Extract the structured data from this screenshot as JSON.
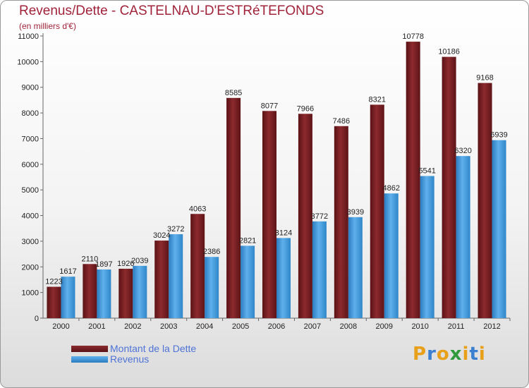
{
  "chart_data": {
    "type": "bar",
    "title": "Revenus/Dette - CASTELNAU-D'ESTRéTEFONDS",
    "subtitle": "(en milliers d'€)",
    "categories": [
      "2000",
      "2001",
      "2002",
      "2003",
      "2004",
      "2005",
      "2006",
      "2007",
      "2008",
      "2009",
      "2010",
      "2011",
      "2012"
    ],
    "series": [
      {
        "name": "Montant de la Dette",
        "color": "#7a1c20",
        "values": [
          1223,
          2110,
          1926,
          3024,
          4063,
          8585,
          8077,
          7966,
          7486,
          8321,
          10778,
          10186,
          9168
        ]
      },
      {
        "name": "Revenus",
        "color": "#3f97d8",
        "values": [
          1617,
          1897,
          2039,
          3272,
          2386,
          2821,
          3124,
          3772,
          3939,
          4862,
          5541,
          6320,
          6939
        ]
      }
    ],
    "data_labels": [
      [
        "1223",
        "2110",
        "1926",
        "3024",
        "4063",
        "8585",
        "8077",
        "7966",
        "7486",
        "8321",
        "10778",
        "10186",
        "9168"
      ],
      [
        "1617",
        "1897",
        "2039",
        "3272",
        "2386",
        "2821",
        "3124",
        "3772",
        "3939",
        "4862",
        "5541",
        "6320",
        "6939"
      ]
    ],
    "ylim": [
      0,
      11000
    ],
    "yticks": [
      "0",
      "1000",
      "2000",
      "3000",
      "4000",
      "5000",
      "6000",
      "7000",
      "8000",
      "9000",
      "10000",
      "11000"
    ],
    "grid": false,
    "legend_position": "bottom-left"
  },
  "logo": {
    "letters": [
      "P",
      "r",
      "o",
      "x",
      "i",
      "t",
      "i"
    ],
    "colors": [
      "#e8a01a",
      "#3a7fd0",
      "#e8a01a",
      "#2e9a3c",
      "#e8a01a",
      "#3a7fd0",
      "#e8a01a"
    ]
  }
}
